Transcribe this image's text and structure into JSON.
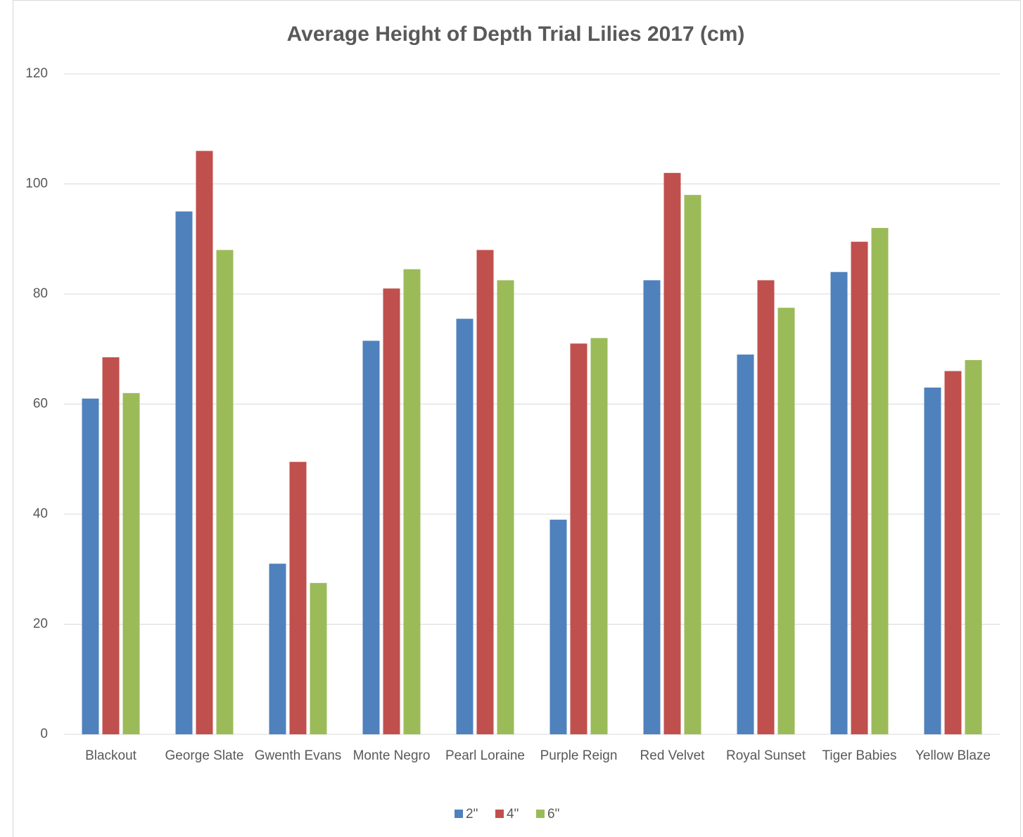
{
  "chart_data": {
    "type": "bar",
    "title": "Average Height of Depth Trial Lilies 2017 (cm)",
    "categories": [
      "Blackout",
      "George Slate",
      "Gwenth Evans",
      "Monte Negro",
      "Pearl Loraine",
      "Purple Reign",
      "Red Velvet",
      "Royal Sunset",
      "Tiger Babies",
      "Yellow Blaze"
    ],
    "series": [
      {
        "name": "2\"",
        "color": "#4f81bd",
        "values": [
          61,
          95,
          31,
          71.5,
          75.5,
          39,
          82.5,
          69,
          84,
          63
        ]
      },
      {
        "name": "4\"",
        "color": "#c0504d",
        "values": [
          68.5,
          106,
          49.5,
          81,
          88,
          71,
          102,
          82.5,
          89.5,
          66
        ]
      },
      {
        "name": "6\"",
        "color": "#9bbb59",
        "values": [
          62,
          88,
          27.5,
          84.5,
          82.5,
          72,
          98,
          77.5,
          92,
          68
        ]
      }
    ],
    "ylim": [
      0,
      120
    ],
    "yticks": [
      0,
      20,
      40,
      60,
      80,
      100,
      120
    ],
    "grid": true,
    "legend": "bottom"
  }
}
